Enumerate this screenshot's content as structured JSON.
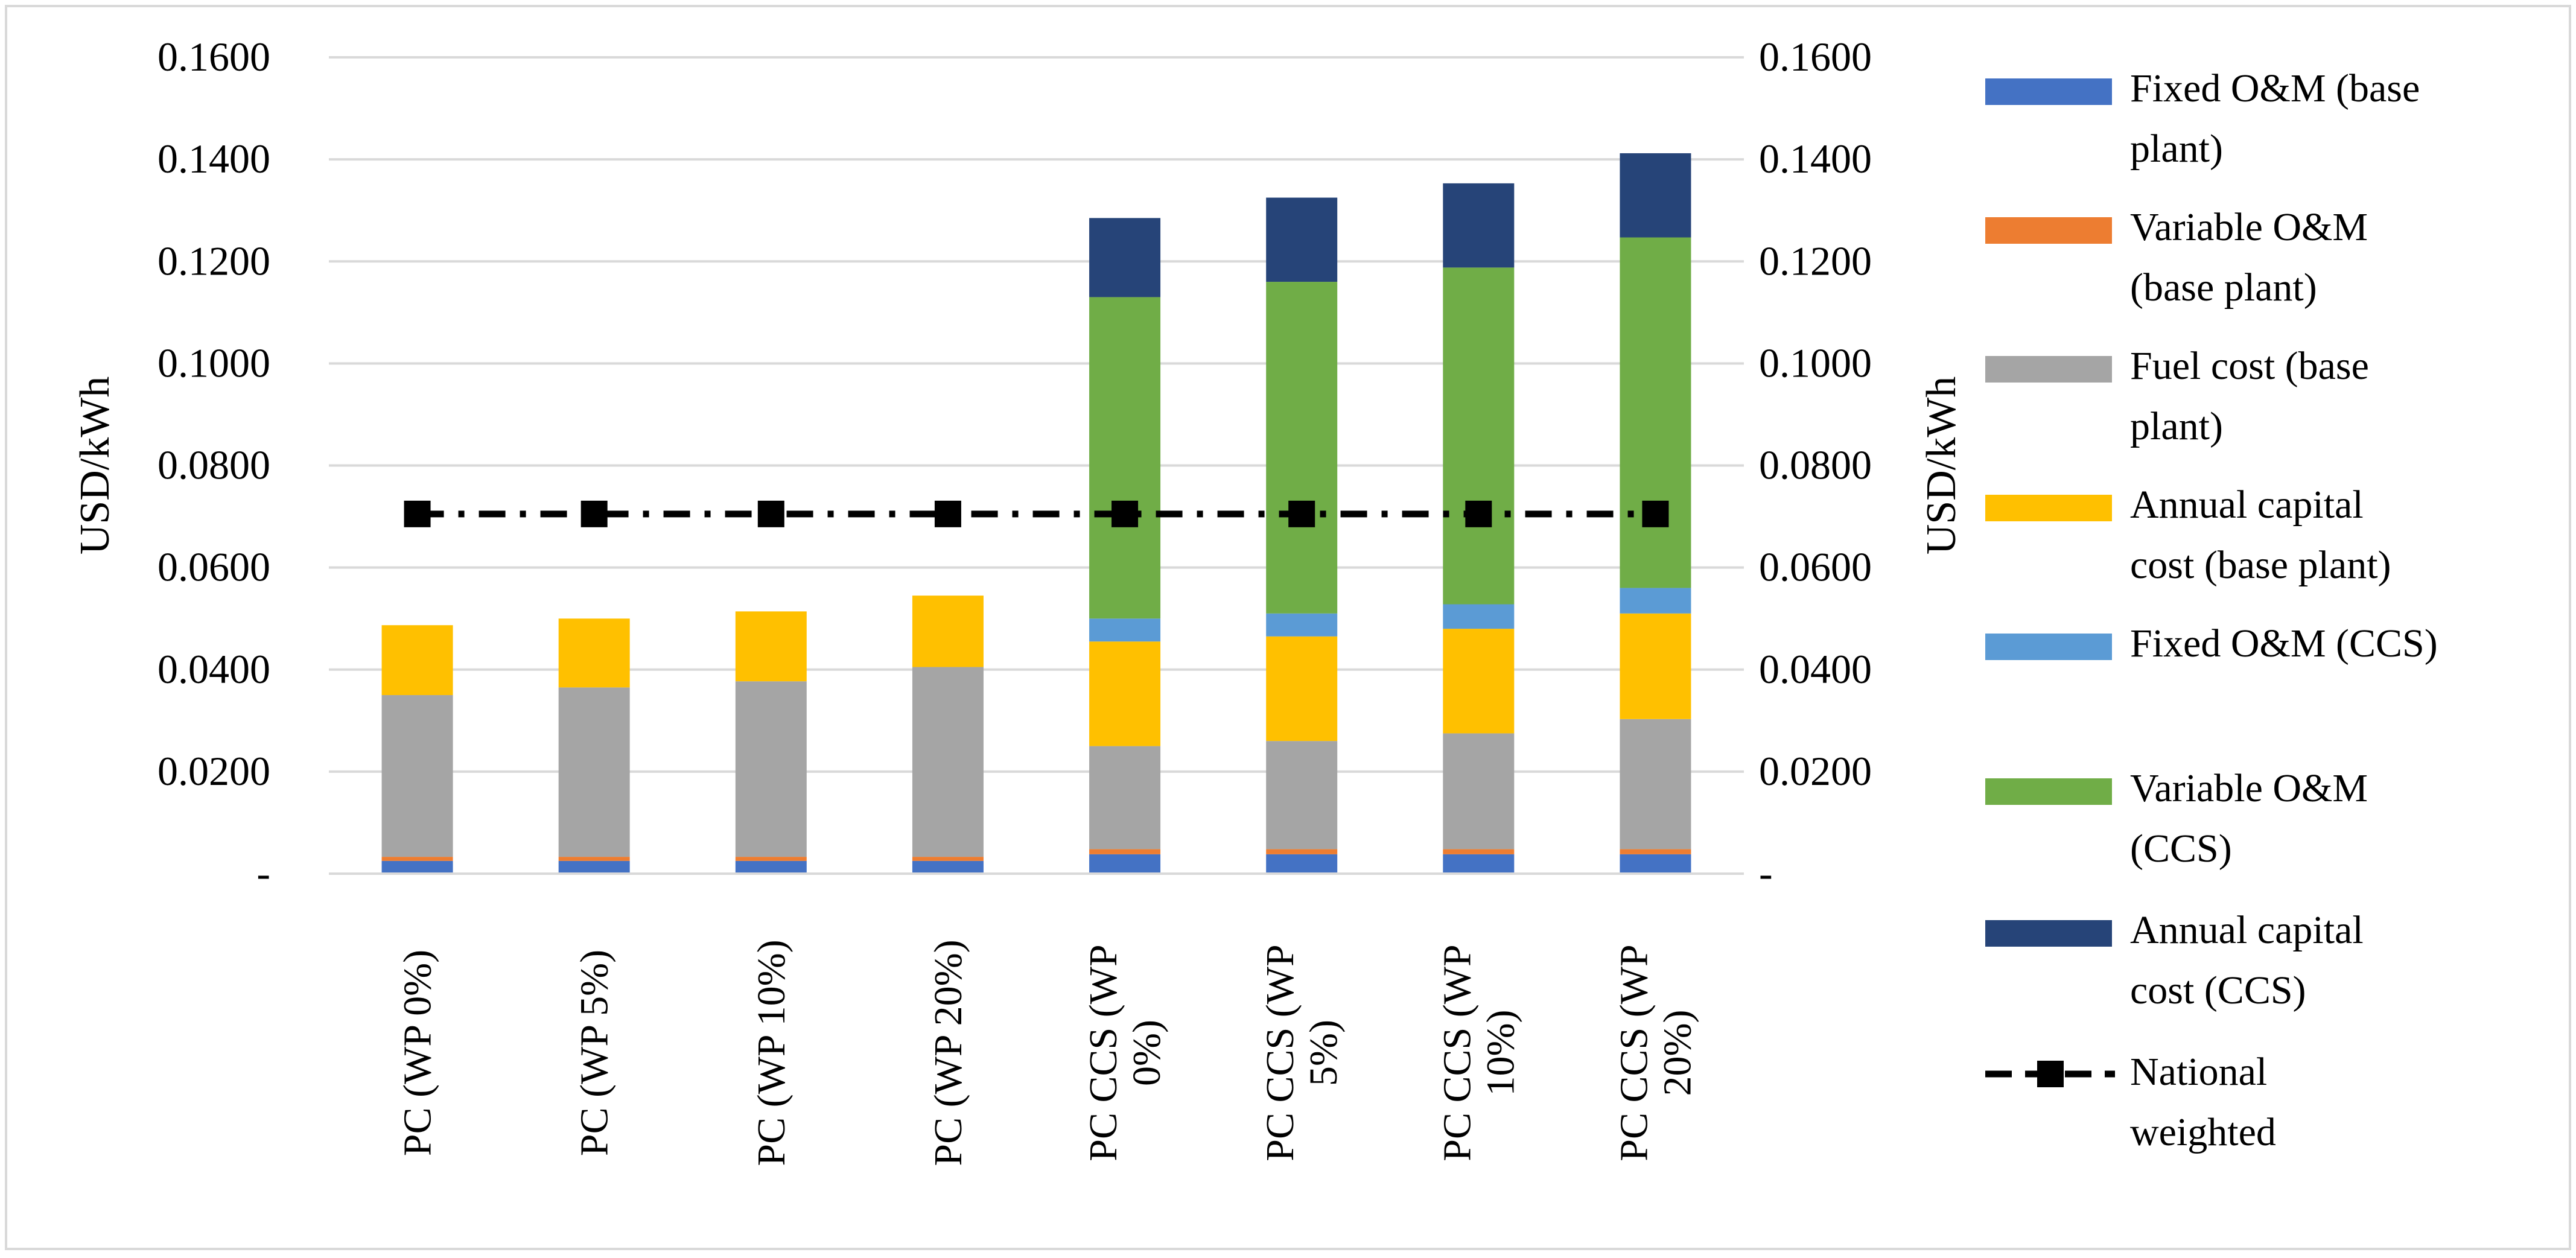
{
  "chart_data": {
    "type": "bar",
    "stacked": true,
    "title": "",
    "ylabel": "USD/kWh",
    "ylabel_right": "USD/kWh",
    "xlabel": "",
    "ylim": [
      0,
      0.16
    ],
    "grid": true,
    "legend_position": "right",
    "y_ticks": [
      {
        "value": 0,
        "label": "-"
      },
      {
        "value": 0.02,
        "label": "0.0200"
      },
      {
        "value": 0.04,
        "label": "0.0400"
      },
      {
        "value": 0.06,
        "label": "0.0600"
      },
      {
        "value": 0.08,
        "label": "0.0800"
      },
      {
        "value": 0.1,
        "label": "0.1000"
      },
      {
        "value": 0.12,
        "label": "0.1200"
      },
      {
        "value": 0.14,
        "label": "0.1400"
      },
      {
        "value": 0.16,
        "label": "0.1600"
      }
    ],
    "categories": [
      [
        "PC (WP 0%)"
      ],
      [
        "PC (WP 5%)"
      ],
      [
        "PC (WP 10%)"
      ],
      [
        "PC (WP 20%)"
      ],
      [
        "PC CCS (WP",
        "0%)"
      ],
      [
        "PC CCS (WP",
        "5%)"
      ],
      [
        "PC CCS (WP",
        "10%)"
      ],
      [
        "PC CCS (WP",
        "20%)"
      ]
    ],
    "series": [
      {
        "name": "Fixed O&M (base plant)",
        "legend_lines": [
          "Fixed O&M (base",
          "plant)"
        ],
        "color": "#4472C4",
        "values": [
          0.0025,
          0.0025,
          0.0025,
          0.0025,
          0.0038,
          0.0038,
          0.0038,
          0.0038
        ]
      },
      {
        "name": "Variable O&M (base plant)",
        "legend_lines": [
          "Variable O&M",
          "(base plant)"
        ],
        "color": "#ED7D31",
        "values": [
          0.0008,
          0.0008,
          0.0008,
          0.0008,
          0.001,
          0.001,
          0.001,
          0.001
        ]
      },
      {
        "name": "Fuel cost (base plant)",
        "legend_lines": [
          "Fuel cost (base",
          "plant)"
        ],
        "color": "#A5A5A5",
        "values": [
          0.0317,
          0.0332,
          0.0344,
          0.0372,
          0.0202,
          0.0212,
          0.0227,
          0.0255
        ]
      },
      {
        "name": "Annual capital cost (base plant)",
        "legend_lines": [
          "Annual capital",
          "cost (base plant)"
        ],
        "color": "#FFC000",
        "values": [
          0.0137,
          0.0135,
          0.0137,
          0.014,
          0.0205,
          0.0205,
          0.0205,
          0.0207
        ]
      },
      {
        "name": "Fixed O&M (CCS)",
        "legend_lines": [
          "Fixed O&M (CCS)"
        ],
        "color": "#5B9BD5",
        "values": [
          0,
          0,
          0,
          0,
          0.0045,
          0.0045,
          0.0048,
          0.005
        ]
      },
      {
        "name": "Variable O&M (CCS)",
        "legend_lines": [
          "Variable O&M",
          "(CCS)"
        ],
        "color": "#70AD47",
        "values": [
          0,
          0,
          0,
          0,
          0.063,
          0.065,
          0.066,
          0.0687
        ]
      },
      {
        "name": "Annual capital cost (CCS)",
        "legend_lines": [
          "Annual capital",
          "cost (CCS)"
        ],
        "color": "#264478",
        "values": [
          0,
          0,
          0,
          0,
          0.0155,
          0.0165,
          0.0165,
          0.0165
        ]
      }
    ],
    "line_series": {
      "name": "National weighted",
      "legend_lines": [
        "National",
        "weighted"
      ],
      "color": "#000000",
      "style": "dash-dot",
      "marker": "square",
      "values": [
        0.0705,
        0.0705,
        0.0705,
        0.0705,
        0.0705,
        0.0705,
        0.0705,
        0.0705
      ]
    }
  }
}
